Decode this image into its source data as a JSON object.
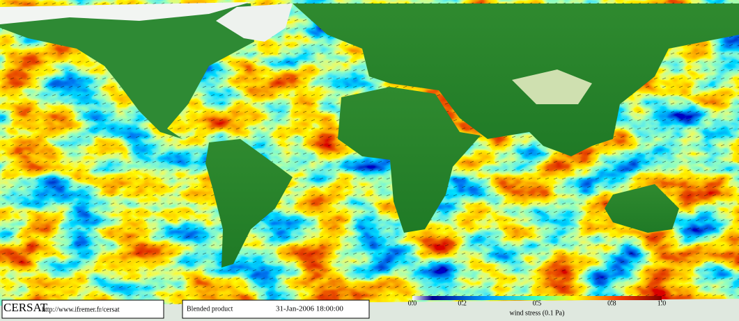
{
  "footer": {
    "logo": "CERSAT",
    "url": "http://www.ifremer.fr/cersat",
    "product": "Blended product",
    "date": "31-Jan-2006 18:00:00"
  },
  "colorbar": {
    "label": "wind stress (0.1 Pa)",
    "lim": [
      0,
      1
    ],
    "ticks": [
      {
        "value": 0,
        "label": "0.0"
      },
      0.2,
      0.5,
      0.8,
      {
        "value": 1,
        "label": "1.0"
      }
    ]
  }
}
